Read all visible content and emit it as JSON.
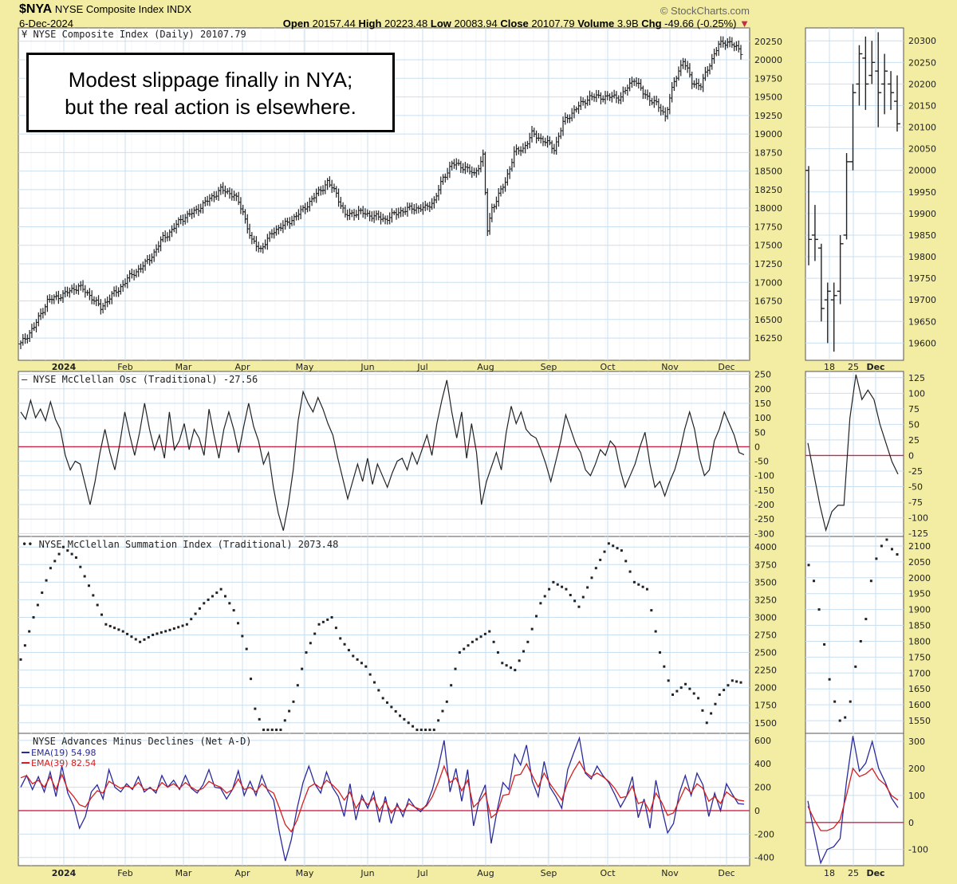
{
  "header": {
    "symbol": "$NYA",
    "name": "NYSE Composite Index",
    "exchange": "INDX",
    "date": "6-Dec-2024",
    "brand": "© StockCharts.com",
    "open_label": "Open",
    "open": "20157.44",
    "high_label": "High",
    "high": "20223.48",
    "low_label": "Low",
    "low": "20083.94",
    "close_label": "Close",
    "close": "20107.79",
    "volume_label": "Volume",
    "volume": "3.9B",
    "chg_label": "Chg",
    "chg": "-49.66 (-0.25%)",
    "down_marker": "▼"
  },
  "annotation": {
    "line1": "Modest slippage finally in NYA;",
    "line2": "but the real action is elsewhere."
  },
  "colors": {
    "bg": "#f2eda2",
    "panel": "#ffffff",
    "grid": "#c9dff0",
    "zero": "#c8284a",
    "price": "#222222",
    "ema19": "#2a2a9c",
    "ema39": "#d42020"
  },
  "chart_data": [
    {
      "type": "ohlc",
      "panel": "price-main",
      "label": "NYSE Composite Index (Daily) 20107.79",
      "x_months": [
        "2024",
        "Feb",
        "Mar",
        "Apr",
        "May",
        "Jun",
        "Jul",
        "Aug",
        "Sep",
        "Oct",
        "Nov",
        "Dec"
      ],
      "yticks": [
        16250,
        16500,
        16750,
        17000,
        17250,
        17500,
        17750,
        18000,
        18250,
        18500,
        18750,
        19000,
        19250,
        19500,
        19750,
        20000,
        20250
      ],
      "ylim": [
        15950,
        20430
      ],
      "close_path": [
        [
          0,
          16170
        ],
        [
          6,
          16400
        ],
        [
          12,
          16750
        ],
        [
          20,
          16850
        ],
        [
          26,
          16950
        ],
        [
          32,
          16800
        ],
        [
          36,
          16650
        ],
        [
          40,
          16800
        ],
        [
          44,
          16900
        ],
        [
          48,
          17050
        ],
        [
          52,
          17150
        ],
        [
          56,
          17250
        ],
        [
          60,
          17400
        ],
        [
          64,
          17600
        ],
        [
          68,
          17700
        ],
        [
          72,
          17850
        ],
        [
          78,
          17950
        ],
        [
          84,
          18100
        ],
        [
          90,
          18250
        ],
        [
          96,
          18180
        ],
        [
          100,
          17950
        ],
        [
          104,
          17550
        ],
        [
          108,
          17450
        ],
        [
          114,
          17700
        ],
        [
          120,
          17800
        ],
        [
          126,
          17950
        ],
        [
          132,
          18150
        ],
        [
          138,
          18350
        ],
        [
          142,
          18200
        ],
        [
          146,
          17900
        ],
        [
          152,
          17950
        ],
        [
          158,
          17900
        ],
        [
          164,
          17850
        ],
        [
          170,
          17950
        ],
        [
          176,
          18000
        ],
        [
          182,
          18000
        ],
        [
          186,
          18100
        ],
        [
          190,
          18400
        ],
        [
          194,
          18600
        ],
        [
          200,
          18550
        ],
        [
          204,
          18450
        ],
        [
          208,
          18700
        ],
        [
          210,
          17700
        ],
        [
          212,
          18000
        ],
        [
          218,
          18350
        ],
        [
          222,
          18750
        ],
        [
          226,
          18800
        ],
        [
          230,
          19000
        ],
        [
          236,
          18900
        ],
        [
          240,
          18800
        ],
        [
          244,
          19150
        ],
        [
          250,
          19350
        ],
        [
          256,
          19500
        ],
        [
          262,
          19500
        ],
        [
          270,
          19500
        ],
        [
          276,
          19750
        ],
        [
          280,
          19550
        ],
        [
          286,
          19400
        ],
        [
          290,
          19250
        ],
        [
          294,
          19700
        ],
        [
          298,
          20000
        ],
        [
          302,
          19700
        ],
        [
          306,
          19650
        ],
        [
          310,
          19950
        ],
        [
          314,
          20200
        ],
        [
          318,
          20250
        ],
        [
          322,
          20160
        ],
        [
          324,
          20107.79
        ]
      ]
    },
    {
      "type": "ohlc",
      "panel": "price-zoom",
      "label": "",
      "x_labels": [
        "18",
        "25",
        "Dec"
      ],
      "yticks": [
        19600,
        19650,
        19700,
        19750,
        19800,
        19850,
        19900,
        19950,
        20000,
        20050,
        20100,
        20150,
        20200,
        20250,
        20300
      ],
      "ylim": [
        19560,
        20330
      ],
      "bars": [
        {
          "o": 20000,
          "h": 20010,
          "l": 19780,
          "c": 19840
        },
        {
          "o": 19850,
          "h": 19920,
          "l": 19790,
          "c": 19840
        },
        {
          "o": 19820,
          "h": 19830,
          "l": 19650,
          "c": 19680
        },
        {
          "o": 19700,
          "h": 19740,
          "l": 19600,
          "c": 19720
        },
        {
          "o": 19700,
          "h": 19740,
          "l": 19580,
          "c": 19710
        },
        {
          "o": 19720,
          "h": 19850,
          "l": 19690,
          "c": 19830
        },
        {
          "o": 19850,
          "h": 20040,
          "l": 19840,
          "c": 20020
        },
        {
          "o": 20020,
          "h": 20200,
          "l": 20000,
          "c": 20180
        },
        {
          "o": 20200,
          "h": 20290,
          "l": 20150,
          "c": 20270
        },
        {
          "o": 20260,
          "h": 20310,
          "l": 20140,
          "c": 20200
        },
        {
          "o": 20220,
          "h": 20300,
          "l": 20200,
          "c": 20250
        },
        {
          "o": 20230,
          "h": 20320,
          "l": 20100,
          "c": 20180
        },
        {
          "o": 20200,
          "h": 20270,
          "l": 20130,
          "c": 20230
        },
        {
          "o": 20200,
          "h": 20230,
          "l": 20140,
          "c": 20180
        },
        {
          "o": 20160,
          "h": 20220,
          "l": 20090,
          "c": 20107.79
        }
      ]
    },
    {
      "type": "line",
      "panel": "osc",
      "label": "NYSE McClellan Osc (Traditional) -27.56",
      "yticks": [
        -300,
        -250,
        -200,
        -150,
        -100,
        -50,
        0,
        50,
        100,
        150,
        200,
        250
      ],
      "ylim": [
        -310,
        260
      ],
      "values": [
        120,
        95,
        160,
        100,
        130,
        90,
        155,
        95,
        60,
        -30,
        -80,
        -50,
        -60,
        -130,
        -200,
        -120,
        -20,
        60,
        -20,
        -80,
        10,
        120,
        40,
        -30,
        50,
        150,
        60,
        -10,
        40,
        -40,
        120,
        -10,
        20,
        80,
        -10,
        60,
        30,
        -30,
        130,
        40,
        -40,
        60,
        120,
        60,
        -20,
        70,
        150,
        70,
        20,
        -60,
        -20,
        -140,
        -230,
        -290,
        -200,
        -80,
        90,
        190,
        150,
        120,
        170,
        130,
        80,
        40,
        -40,
        -110,
        -180,
        -120,
        -60,
        -120,
        -40,
        -130,
        -60,
        -100,
        -140,
        -90,
        -50,
        -40,
        -80,
        -20,
        -60,
        -10,
        40,
        -30,
        80,
        160,
        230,
        120,
        30,
        120,
        -40,
        80,
        -20,
        -200,
        -120,
        -70,
        -20,
        -80,
        50,
        140,
        80,
        120,
        60,
        40,
        30,
        -10,
        -60,
        -120,
        -50,
        20,
        110,
        60,
        10,
        -20,
        -80,
        -100,
        -60,
        -10,
        -30,
        20,
        0,
        -80,
        -140,
        -100,
        -60,
        0,
        50,
        -60,
        -140,
        -120,
        -170,
        -120,
        -80,
        -20,
        60,
        120,
        60,
        -40,
        -100,
        -80,
        20,
        60,
        120,
        80,
        40,
        -20,
        -27.56
      ]
    },
    {
      "type": "line",
      "panel": "osc-zoom",
      "label": "",
      "yticks": [
        -125,
        -100,
        -75,
        -50,
        -25,
        0,
        25,
        50,
        75,
        100,
        125
      ],
      "ylim": [
        -130,
        135
      ],
      "values": [
        20,
        -30,
        -80,
        -120,
        -90,
        -80,
        -80,
        60,
        130,
        90,
        105,
        90,
        50,
        20,
        -10,
        -30
      ]
    },
    {
      "type": "scatter",
      "panel": "summation",
      "label": "NYSE McClellan Summation Index (Traditional) 2073.48",
      "yticks": [
        1500,
        1750,
        2000,
        2250,
        2500,
        2750,
        3000,
        3250,
        3500,
        3750,
        4000
      ],
      "ylim": [
        1350,
        4150
      ],
      "path": [
        [
          0,
          2400
        ],
        [
          6,
          3000
        ],
        [
          14,
          3700
        ],
        [
          20,
          4000
        ],
        [
          26,
          3850
        ],
        [
          32,
          3450
        ],
        [
          40,
          2900
        ],
        [
          48,
          2800
        ],
        [
          56,
          2650
        ],
        [
          62,
          2750
        ],
        [
          70,
          2820
        ],
        [
          78,
          2900
        ],
        [
          86,
          3200
        ],
        [
          94,
          3400
        ],
        [
          100,
          3100
        ],
        [
          106,
          2550
        ],
        [
          110,
          1700
        ],
        [
          114,
          1400
        ],
        [
          122,
          1400
        ],
        [
          128,
          1800
        ],
        [
          134,
          2500
        ],
        [
          140,
          2900
        ],
        [
          146,
          3000
        ],
        [
          150,
          2700
        ],
        [
          156,
          2450
        ],
        [
          162,
          2300
        ],
        [
          170,
          1850
        ],
        [
          178,
          1600
        ],
        [
          186,
          1400
        ],
        [
          194,
          1400
        ],
        [
          200,
          1800
        ],
        [
          206,
          2500
        ],
        [
          212,
          2650
        ],
        [
          220,
          2800
        ],
        [
          226,
          2350
        ],
        [
          232,
          2250
        ],
        [
          238,
          2650
        ],
        [
          244,
          3200
        ],
        [
          250,
          3500
        ],
        [
          256,
          3400
        ],
        [
          262,
          3150
        ],
        [
          270,
          3700
        ],
        [
          276,
          4050
        ],
        [
          282,
          3950
        ],
        [
          288,
          3500
        ],
        [
          294,
          3400
        ],
        [
          300,
          2500
        ],
        [
          306,
          1900
        ],
        [
          312,
          2050
        ],
        [
          318,
          1850
        ],
        [
          322,
          1500
        ],
        [
          328,
          1900
        ],
        [
          334,
          2100
        ],
        [
          338,
          2073.48
        ]
      ]
    },
    {
      "type": "scatter",
      "panel": "summation-zoom",
      "label": "",
      "yticks": [
        1550,
        1600,
        1650,
        1700,
        1750,
        1800,
        1850,
        1900,
        1950,
        2000,
        2050,
        2100
      ],
      "ylim": [
        1510,
        2130
      ],
      "values": [
        2040,
        1990,
        1900,
        1790,
        1680,
        1610,
        1550,
        1560,
        1610,
        1720,
        1800,
        1870,
        1990,
        2060,
        2100,
        2120,
        2090,
        2073.48
      ]
    },
    {
      "type": "line",
      "panel": "ad",
      "label": "NYSE Advances Minus Declines (Net A-D)",
      "yticks": [
        -400,
        -200,
        0,
        200,
        400,
        600
      ],
      "ylim": [
        -470,
        660
      ],
      "series": [
        {
          "name": "EMA(19) 54.98",
          "color": "#2a2a9c",
          "values": [
            200,
            300,
            180,
            290,
            160,
            330,
            120,
            380,
            150,
            40,
            -150,
            -50,
            160,
            220,
            100,
            350,
            200,
            160,
            230,
            180,
            290,
            160,
            200,
            150,
            300,
            200,
            260,
            180,
            300,
            190,
            150,
            220,
            350,
            200,
            190,
            100,
            180,
            340,
            130,
            250,
            130,
            300,
            170,
            90,
            -190,
            -430,
            -250,
            20,
            240,
            380,
            230,
            150,
            330,
            200,
            120,
            -50,
            230,
            -80,
            130,
            20,
            160,
            -100,
            120,
            -110,
            60,
            -50,
            100,
            30,
            -10,
            50,
            180,
            370,
            600,
            160,
            360,
            80,
            350,
            -130,
            100,
            220,
            -280,
            0,
            240,
            180,
            480,
            390,
            560,
            250,
            120,
            420,
            200,
            120,
            20,
            350,
            490,
            620,
            320,
            270,
            380,
            300,
            240,
            140,
            30,
            120,
            290,
            -60,
            100,
            -150,
            260,
            20,
            -190,
            -110,
            150,
            300,
            130,
            320,
            220,
            -50,
            150,
            0,
            230,
            140,
            60,
            55
          ]
        },
        {
          "name": "EMA(39) 82.54",
          "color": "#d42020",
          "values": [
            280,
            300,
            230,
            260,
            200,
            290,
            180,
            310,
            180,
            120,
            50,
            30,
            110,
            170,
            150,
            250,
            220,
            190,
            210,
            190,
            240,
            180,
            190,
            170,
            240,
            200,
            230,
            190,
            240,
            200,
            170,
            190,
            250,
            220,
            200,
            150,
            180,
            270,
            180,
            200,
            160,
            230,
            180,
            150,
            20,
            -120,
            -180,
            -80,
            70,
            200,
            230,
            190,
            260,
            220,
            170,
            90,
            160,
            20,
            100,
            50,
            110,
            0,
            80,
            -20,
            40,
            -10,
            60,
            30,
            10,
            40,
            120,
            240,
            380,
            240,
            280,
            170,
            260,
            30,
            80,
            150,
            -60,
            -20,
            130,
            140,
            300,
            310,
            400,
            300,
            200,
            320,
            230,
            160,
            90,
            240,
            340,
            420,
            330,
            290,
            320,
            290,
            250,
            190,
            110,
            120,
            210,
            60,
            80,
            -10,
            150,
            70,
            -40,
            -20,
            90,
            200,
            150,
            230,
            190,
            80,
            120,
            60,
            160,
            120,
            90,
            82.54
          ]
        }
      ]
    },
    {
      "type": "line",
      "panel": "ad-zoom",
      "label": "",
      "yticks": [
        -100,
        0,
        100,
        200,
        300
      ],
      "ylim": [
        -160,
        330
      ],
      "series": [
        {
          "name": "EMA(19)",
          "color": "#2a2a9c",
          "values": [
            80,
            -40,
            -150,
            -100,
            -90,
            -60,
            150,
            320,
            190,
            220,
            300,
            200,
            150,
            90,
            55
          ]
        },
        {
          "name": "EMA(39)",
          "color": "#d42020",
          "values": [
            60,
            10,
            -30,
            -30,
            -20,
            10,
            100,
            200,
            170,
            180,
            200,
            160,
            140,
            100,
            82.54
          ]
        }
      ]
    }
  ]
}
